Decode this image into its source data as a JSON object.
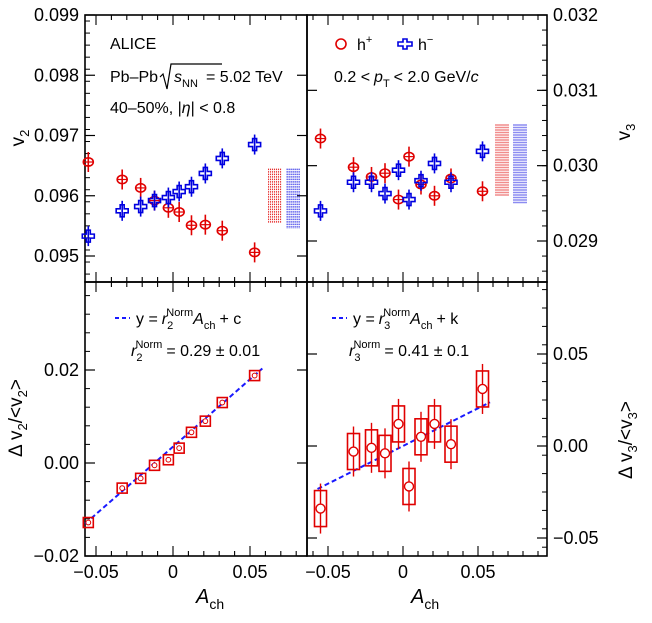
{
  "chart_data": [
    {
      "type": "scatter",
      "panel": "top-left",
      "ylabel": "v2",
      "ylim": [
        0.0945,
        0.099
      ],
      "xlim": [
        -0.065,
        0.09
      ],
      "yticks": [
        0.095,
        0.096,
        0.097,
        0.098,
        0.099
      ],
      "ytick_labels": [
        "0.095",
        "0.096",
        "0.097",
        "0.098",
        "0.099"
      ],
      "annotations": [
        "ALICE",
        "Pb–Pb",
        "s",
        "NN",
        "= 5.02 TeV",
        "40–50%, |",
        "η",
        "| < 0.8"
      ],
      "series": [
        {
          "name": "h+",
          "marker": "open-circle",
          "color": "#e00000",
          "x": [
            -0.055,
            -0.033,
            -0.021,
            -0.012,
            -0.003,
            0.004,
            0.012,
            0.021,
            0.032,
            0.053
          ],
          "y": [
            0.09656,
            0.09627,
            0.09613,
            0.09592,
            0.0958,
            0.09573,
            0.09551,
            0.09552,
            0.09542,
            0.09506
          ]
        },
        {
          "name": "h−",
          "marker": "open-cross",
          "color": "#0000e0",
          "x": [
            -0.055,
            -0.033,
            -0.021,
            -0.012,
            -0.003,
            0.004,
            0.012,
            0.021,
            0.032,
            0.053
          ],
          "y": [
            0.09533,
            0.09575,
            0.09582,
            0.09592,
            0.09597,
            0.09607,
            0.09615,
            0.09637,
            0.09662,
            0.09685
          ]
        }
      ],
      "syst_bands": [
        {
          "color": "#e00000",
          "x": 0.066,
          "ylim": [
            0.09555,
            0.09645
          ]
        },
        {
          "color": "#0000e0",
          "x": 0.078,
          "ylim": [
            0.09545,
            0.09645
          ]
        }
      ]
    },
    {
      "type": "scatter",
      "panel": "top-right",
      "ylabel": "v3",
      "ylim": [
        0.0286,
        0.032
      ],
      "xlim": [
        -0.065,
        0.09
      ],
      "yticks": [
        0.029,
        0.03,
        0.031,
        0.032
      ],
      "ytick_labels": [
        "0.029",
        "0.030",
        "0.031",
        "0.032"
      ],
      "annotations": [
        "0.2 <",
        "p",
        "T",
        "< 2.0 GeV/",
        "c"
      ],
      "series": [
        {
          "name": "h+",
          "marker": "open-circle",
          "color": "#e00000",
          "x": [
            -0.055,
            -0.033,
            -0.021,
            -0.012,
            -0.003,
            0.004,
            0.012,
            0.021,
            0.032,
            0.053
          ],
          "y": [
            0.03036,
            0.02998,
            0.02985,
            0.0299,
            0.02955,
            0.03012,
            0.02975,
            0.0296,
            0.02983,
            0.02966
          ]
        },
        {
          "name": "h−",
          "marker": "open-cross",
          "color": "#0000e0",
          "x": [
            -0.055,
            -0.033,
            -0.021,
            -0.012,
            -0.003,
            0.004,
            0.012,
            0.021,
            0.032,
            0.053
          ],
          "y": [
            0.0294,
            0.02978,
            0.02978,
            0.02963,
            0.02994,
            0.02955,
            0.0298,
            0.03003,
            0.02978,
            0.03019
          ]
        }
      ],
      "syst_bands": [
        {
          "color": "#e00000",
          "x": 0.066,
          "ylim": [
            0.0296,
            0.03055
          ]
        },
        {
          "color": "#0000e0",
          "x": 0.078,
          "ylim": [
            0.0295,
            0.03055
          ]
        }
      ]
    },
    {
      "type": "scatter",
      "panel": "bottom-left",
      "xlabel": "A_ch",
      "ylabel": "Δ v2/<v2>",
      "xlim": [
        -0.065,
        0.09
      ],
      "ylim": [
        -0.02,
        0.04
      ],
      "yticks": [
        -0.02,
        0.0,
        0.02
      ],
      "ytick_labels": [
        "−0.02",
        "0.00",
        "0.02"
      ],
      "xticks": [
        -0.05,
        0.0,
        0.05
      ],
      "xtick_labels": [
        "−0.05",
        "0",
        "0.05"
      ],
      "annotations": [
        "y =",
        "r",
        "2",
        "Norm",
        "A",
        "ch",
        "+ c",
        "r",
        "2",
        "Norm",
        "= 0.29 ± 0.01"
      ],
      "x": [
        -0.055,
        -0.033,
        -0.021,
        -0.012,
        -0.003,
        0.004,
        0.012,
        0.021,
        0.032,
        0.053
      ],
      "y": [
        -0.0128,
        -0.0054,
        -0.0033,
        -0.0005,
        0.0007,
        0.0032,
        0.0066,
        0.009,
        0.013,
        0.0188
      ],
      "fit": {
        "slope": 0.29,
        "intercept": 0.0035,
        "x_range": [
          -0.057,
          0.058
        ],
        "color": "#1a1aff"
      }
    },
    {
      "type": "scatter",
      "panel": "bottom-right",
      "xlabel": "A_ch",
      "ylabel": "Δ v3/<v3>",
      "xlim": [
        -0.065,
        0.09
      ],
      "ylim": [
        -0.065,
        0.085
      ],
      "yticks": [
        -0.05,
        0.0,
        0.05
      ],
      "ytick_labels": [
        "−0.05",
        "0.00",
        "0.05"
      ],
      "xticks": [
        -0.05,
        0.0,
        0.05
      ],
      "xtick_labels": [
        "−0.05",
        "0",
        "0.05"
      ],
      "annotations": [
        "y =",
        "r",
        "3",
        "Norm",
        "A",
        "ch",
        "+ k",
        "r",
        "3",
        "Norm",
        "= 0.41 ± 0.1"
      ],
      "x": [
        -0.055,
        -0.033,
        -0.021,
        -0.012,
        -0.003,
        0.004,
        0.012,
        0.021,
        0.032,
        0.053
      ],
      "y": [
        -0.034,
        -0.003,
        -0.001,
        -0.004,
        0.012,
        -0.022,
        0.005,
        0.012,
        0.001,
        0.031
      ],
      "fit": {
        "slope": 0.41,
        "intercept": 0.0,
        "x_range": [
          -0.057,
          0.058
        ],
        "color": "#1a1aff"
      }
    }
  ],
  "axis_titles": {
    "top_left_y": "v",
    "top_left_y_sub": "2",
    "top_right_y": "v",
    "top_right_y_sub": "3",
    "bottom_left_y": "Δ v",
    "bottom_left_y_sub": "2",
    "bottom_left_y_mid": "/<v",
    "bottom_left_y_sub2": "2",
    "bottom_left_y_end": ">",
    "bottom_right_y": "Δ v",
    "bottom_right_y_sub": "3",
    "bottom_right_y_mid": "/<v",
    "bottom_right_y_sub2": "3",
    "bottom_right_y_end": ">",
    "x_main": "A",
    "x_sub": "ch"
  },
  "legend": {
    "hplus": "h",
    "hplus_sup": "+",
    "hminus": "h",
    "hminus_sup": "−"
  },
  "colors": {
    "red": "#e00000",
    "blue": "#0000e0",
    "fit": "#1a1aff"
  }
}
